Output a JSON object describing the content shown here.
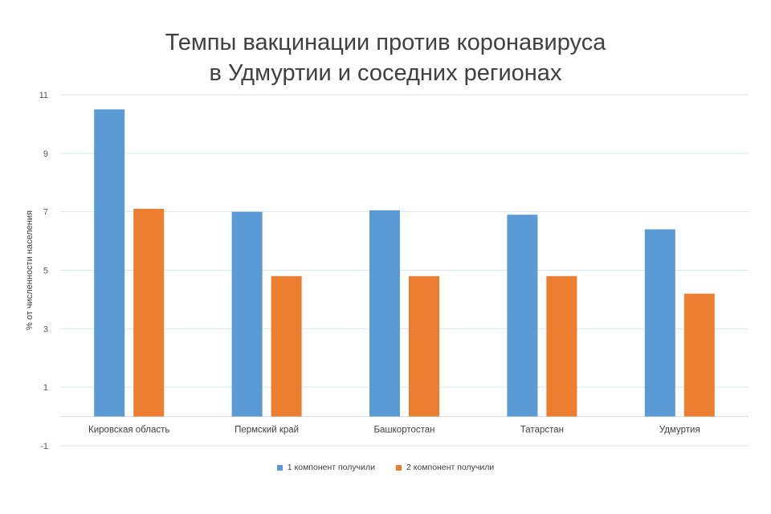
{
  "chart_data": {
    "type": "bar",
    "title_lines": [
      "Темпы вакцинации против коронавируса",
      "в Удмуртии и соседних регионах"
    ],
    "ylabel": "% от численности населения",
    "xlabel": "",
    "categories": [
      "Кировская область",
      "Пермский край",
      "Башкортостан",
      "Татарстан",
      "Удмуртия"
    ],
    "series": [
      {
        "name": "1 компонент получили",
        "color": "#5B9BD5",
        "values": [
          10.5,
          7.0,
          7.05,
          6.9,
          6.4
        ]
      },
      {
        "name": "2 компонент получили",
        "color": "#ED7D31",
        "values": [
          7.1,
          4.8,
          4.8,
          4.8,
          4.2
        ]
      }
    ],
    "yticks": [
      "11",
      "9",
      "7",
      "5",
      "3",
      "1",
      "-1"
    ],
    "ylim": [
      -1,
      11
    ],
    "grid": true,
    "legend_position": "bottom"
  }
}
